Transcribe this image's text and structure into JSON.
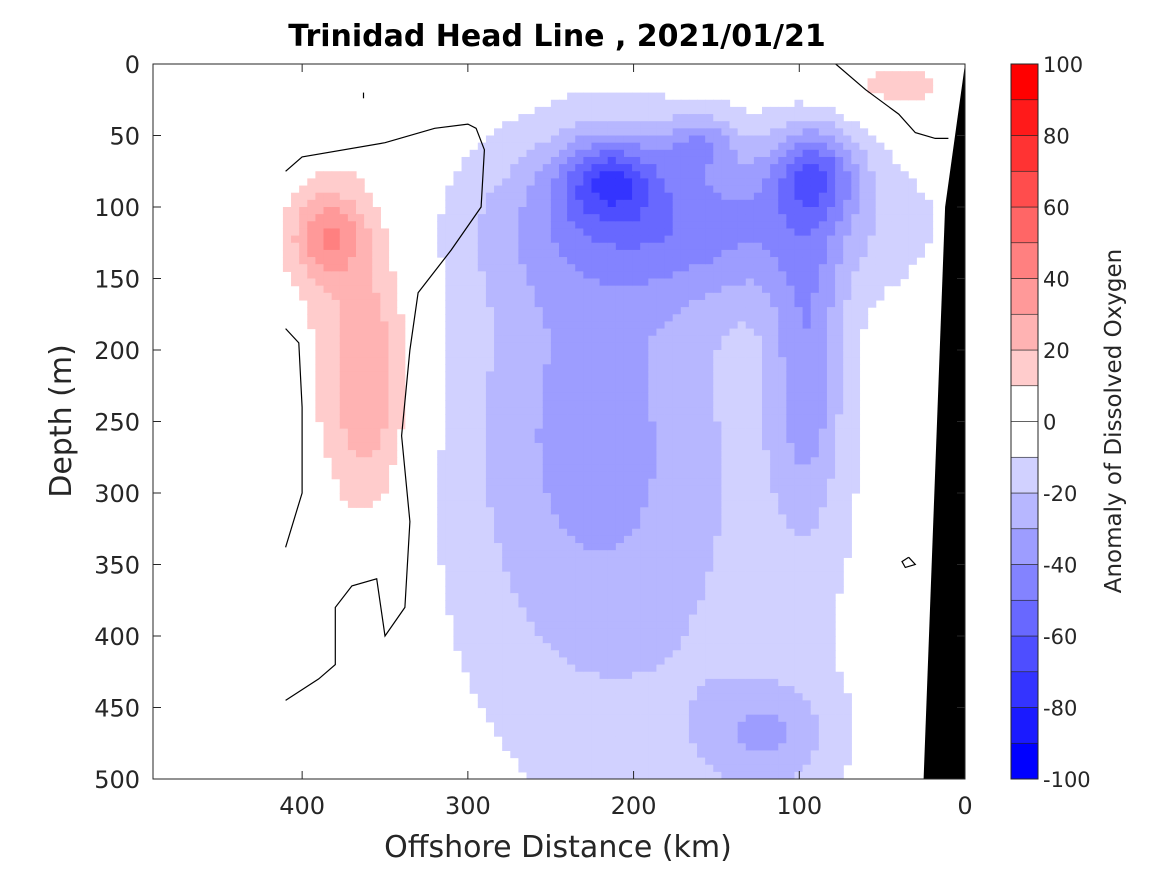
{
  "chart_data": {
    "type": "heatmap",
    "title": "Trinidad Head Line , 2021/01/21",
    "xlabel": "Offshore Distance (km)",
    "ylabel": "Depth (m)",
    "xlim": [
      490,
      0
    ],
    "ylim": [
      0,
      500
    ],
    "x_reversed": true,
    "y_reversed": true,
    "xticks": [
      400,
      300,
      200,
      100,
      0
    ],
    "yticks": [
      0,
      50,
      100,
      150,
      200,
      250,
      300,
      350,
      400,
      450,
      500
    ],
    "colorbar": {
      "label": "Anomaly of Dissolved Oxygen",
      "range": [
        -100,
        100
      ],
      "levels": [
        -100,
        -90,
        -80,
        -70,
        -60,
        -50,
        -40,
        -30,
        -20,
        -10,
        0,
        10,
        20,
        30,
        40,
        50,
        60,
        70,
        80,
        90,
        100
      ],
      "ticks": [
        100,
        80,
        60,
        40,
        20,
        0,
        -20,
        -40,
        -60,
        -80,
        -100
      ]
    },
    "colors": {
      "neg_max": "#0000ff",
      "pos_max": "#ff0000",
      "neutral": "#ffffff",
      "topography": "#000000"
    },
    "features": [
      {
        "type": "negative_anomaly_core",
        "x": 215,
        "y": 80,
        "value": -80
      },
      {
        "type": "negative_anomaly_core",
        "x": 90,
        "y": 75,
        "value": -80
      },
      {
        "type": "negative_anomaly_core",
        "x": 160,
        "y": 55,
        "value": -70
      },
      {
        "type": "positive_anomaly_core",
        "x": 385,
        "y": 120,
        "value": 40
      },
      {
        "type": "positive_anomaly",
        "x": 360,
        "y": 230,
        "value": 30
      },
      {
        "type": "positive_anomaly_nearshore",
        "x": 40,
        "y": 15,
        "value": 15
      }
    ]
  }
}
